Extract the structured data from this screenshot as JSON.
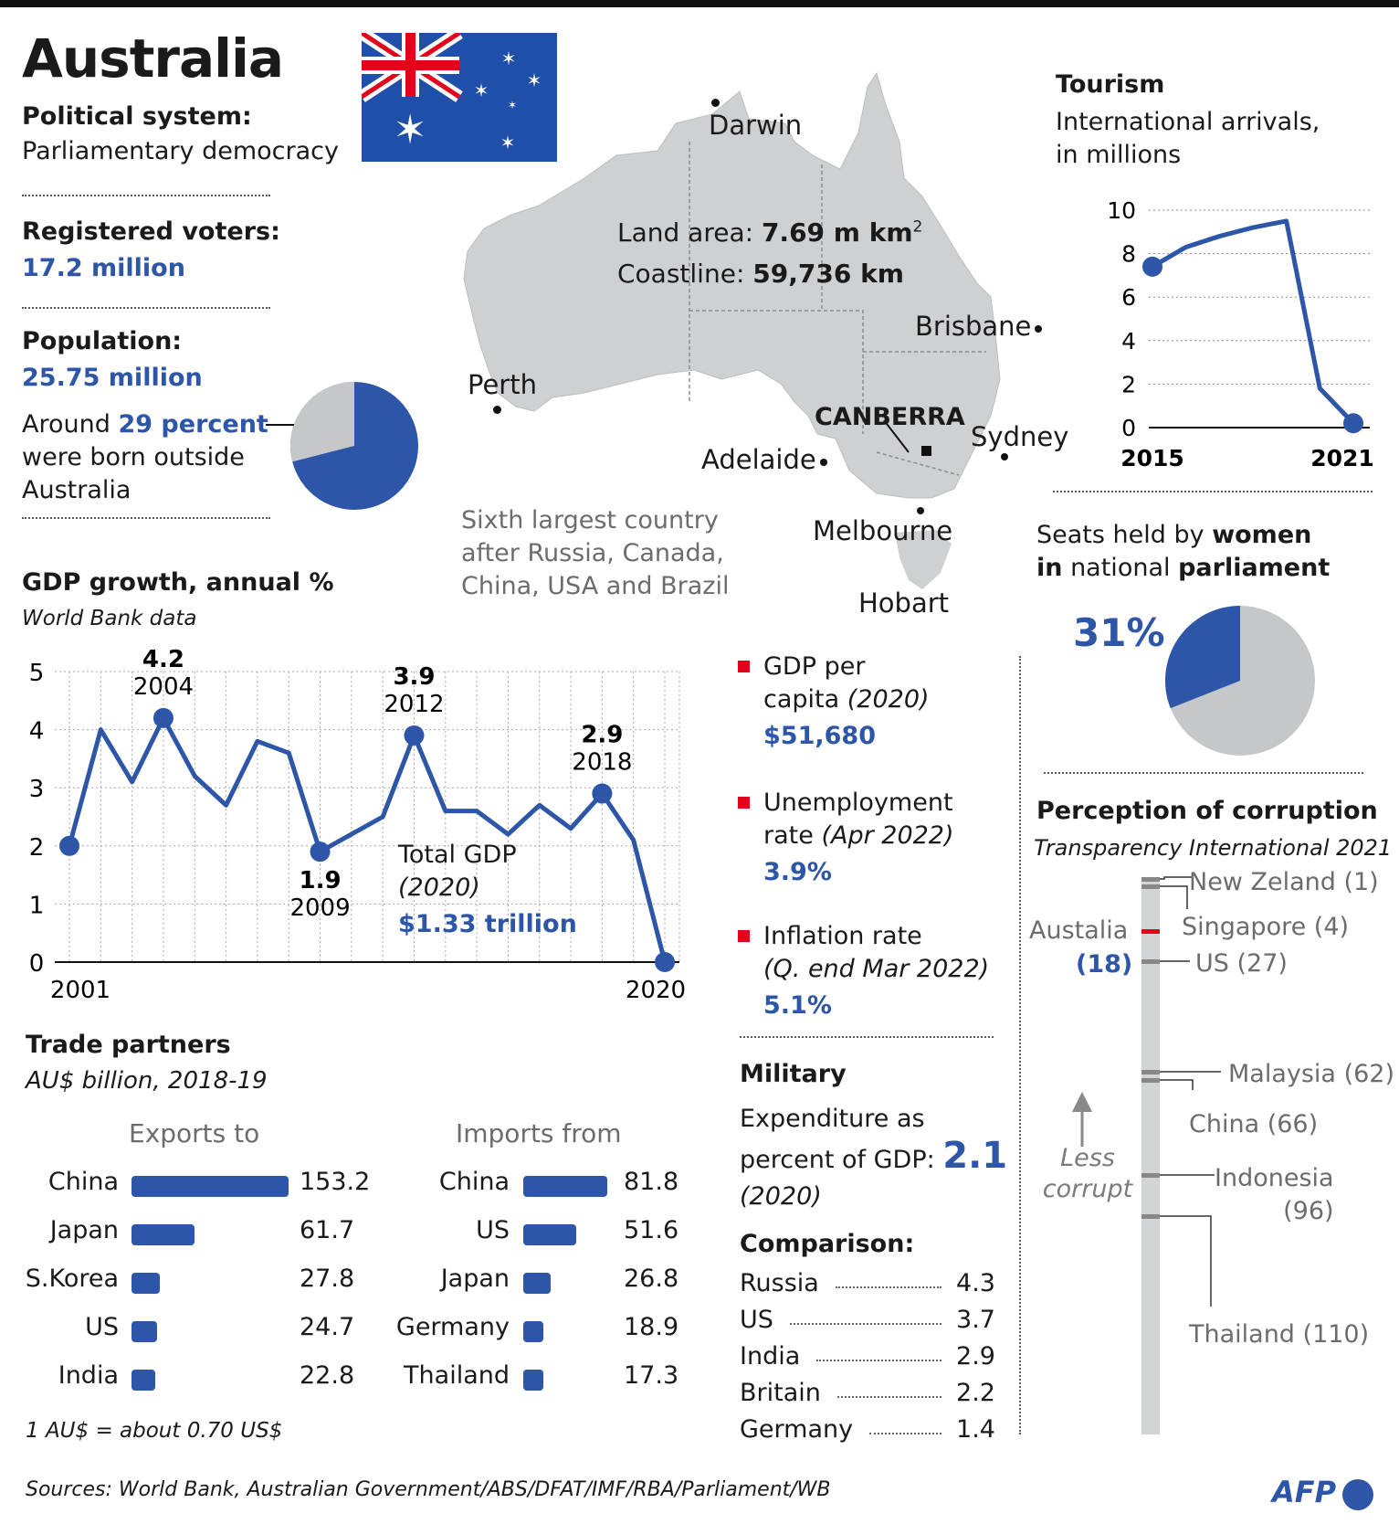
{
  "title": "Australia",
  "political": {
    "label": "Political system:",
    "value": "Parliamentary democracy"
  },
  "voters": {
    "label": "Registered voters:",
    "value": "17.2 million"
  },
  "population": {
    "label": "Population:",
    "value": "25.75 million",
    "note_pre": "Around ",
    "note_pct": "29 percent",
    "note_l2": "were born outside",
    "note_l3": "Australia",
    "born_outside_percent": 29
  },
  "map": {
    "cities": {
      "darwin": "Darwin",
      "perth": "Perth",
      "brisbane": "Brisbane",
      "canberra": "CANBERRA",
      "sydney": "Sydney",
      "adelaide": "Adelaide",
      "melbourne": "Melbourne",
      "hobart": "Hobart"
    },
    "land_label": "Land area: ",
    "land_value": "7.69 m km",
    "land_sup": "2",
    "coast_label": "Coastline: ",
    "coast_value": "59,736 km",
    "sixth": [
      "Sixth largest country",
      "after Russia, Canada,",
      "China, USA and Brazil"
    ]
  },
  "tourism": {
    "title": "Tourism",
    "subtitle_l1": "International arrivals,",
    "subtitle_l2": "in millions",
    "chart_data": {
      "type": "line",
      "title": "Tourism",
      "x": [
        2015,
        2016,
        2017,
        2018,
        2019,
        2020,
        2021
      ],
      "y": [
        7.4,
        8.3,
        8.8,
        9.2,
        9.5,
        1.8,
        0.2
      ],
      "ylim": [
        0,
        10
      ],
      "yticks": [
        "10",
        "8",
        "6",
        "4",
        "2",
        "0"
      ],
      "xticks": [
        "2015",
        "2021"
      ]
    }
  },
  "women": {
    "title_a": "Seats held by ",
    "title_b": "women",
    "title_c": "in",
    "title_d": " national ",
    "title_e": "parliament",
    "value": "31%",
    "percent": 31
  },
  "gdp": {
    "title": "GDP growth, annual %",
    "source": "World Bank data",
    "chart_data": {
      "type": "line",
      "title": "GDP growth, annual %",
      "x": [
        2001,
        2002,
        2003,
        2004,
        2005,
        2006,
        2007,
        2008,
        2009,
        2010,
        2011,
        2012,
        2013,
        2014,
        2015,
        2016,
        2017,
        2018,
        2019,
        2020
      ],
      "y": [
        2.0,
        4.0,
        3.1,
        4.2,
        3.2,
        2.7,
        3.8,
        3.6,
        1.9,
        2.2,
        2.5,
        3.9,
        2.6,
        2.6,
        2.2,
        2.7,
        2.3,
        2.9,
        2.1,
        0.0
      ],
      "ylim": [
        0,
        5
      ],
      "yticks": [
        "5",
        "4",
        "3",
        "2",
        "1",
        "0"
      ],
      "xticks": [
        "2001",
        "2020"
      ],
      "annotations": [
        {
          "value": "4.2",
          "year": "2004"
        },
        {
          "value": "1.9",
          "year": "2009"
        },
        {
          "value": "3.9",
          "year": "2012"
        },
        {
          "value": "2.9",
          "year": "2018"
        }
      ]
    },
    "total_label": "Total GDP",
    "total_year": "(2020)",
    "total_value": "$1.33 trillion"
  },
  "stats": {
    "gdp_pc_l1": "GDP per",
    "gdp_pc_l2a": "capita ",
    "gdp_pc_l2b": "(2020)",
    "gdp_pc_value": "$51,680",
    "unemp_l1": "Unemployment",
    "unemp_l2a": "rate ",
    "unemp_l2b": "(Apr 2022)",
    "unemp_value": "3.9%",
    "infl_l1": "Inflation rate",
    "infl_l2": "(Q. end Mar 2022)",
    "infl_value": "5.1%"
  },
  "military": {
    "title": "Military",
    "exp_l1": "Expenditure as",
    "exp_l2": "percent of GDP: ",
    "exp_value": "2.1",
    "exp_year": "(2020)",
    "comparison_title": "Comparison:",
    "comparison": [
      {
        "country": "Russia",
        "value": "4.3"
      },
      {
        "country": "US",
        "value": "3.7"
      },
      {
        "country": "India",
        "value": "2.9"
      },
      {
        "country": "Britain",
        "value": "2.2"
      },
      {
        "country": "Germany",
        "value": "1.4"
      }
    ]
  },
  "trade": {
    "title": "Trade partners",
    "subtitle": "AU$ billion, 2018-19",
    "exports_title": "Exports to",
    "imports_title": "Imports from",
    "chart_data": [
      {
        "type": "bar",
        "title": "Exports to",
        "categories": [
          "China",
          "Japan",
          "S.Korea",
          "US",
          "India"
        ],
        "values": [
          153.2,
          61.7,
          27.8,
          24.7,
          22.8
        ]
      },
      {
        "type": "bar",
        "title": "Imports from",
        "categories": [
          "China",
          "US",
          "Japan",
          "Germany",
          "Thailand"
        ],
        "values": [
          81.8,
          51.6,
          26.8,
          18.9,
          17.3
        ]
      }
    ],
    "exports_labels": [
      "153.2",
      "61.7",
      "27.8",
      "24.7",
      "22.8"
    ],
    "imports_labels": [
      "81.8",
      "51.6",
      "26.8",
      "18.9",
      "17.3"
    ],
    "note": "1 AU$ = about 0.70 US$"
  },
  "corruption": {
    "title": "Perception of corruption",
    "source": "Transparency International 2021",
    "australia_label": "Austalia",
    "australia_rank": "(18)",
    "less_l1": "Less",
    "less_l2": "corrupt",
    "labels": {
      "nz": "New Zeland (1)",
      "sg": "Singapore (4)",
      "us": "US (27)",
      "my": "Malaysia (62)",
      "cn": "China (66)",
      "id1": "Indonesia",
      "id2": "(96)",
      "th": "Thailand (110)"
    },
    "ranks": [
      1,
      4,
      18,
      27,
      62,
      66,
      96,
      110
    ]
  },
  "sources": "Sources: World Bank, Australian Government/ABS/DFAT/IMF/RBA/Parliament/WB",
  "logo": "AFP",
  "colors": {
    "blue": "#2d56a8",
    "grey": "#c6c7c9",
    "red": "#e4001b",
    "bar_grey": "#d3d4d6"
  }
}
